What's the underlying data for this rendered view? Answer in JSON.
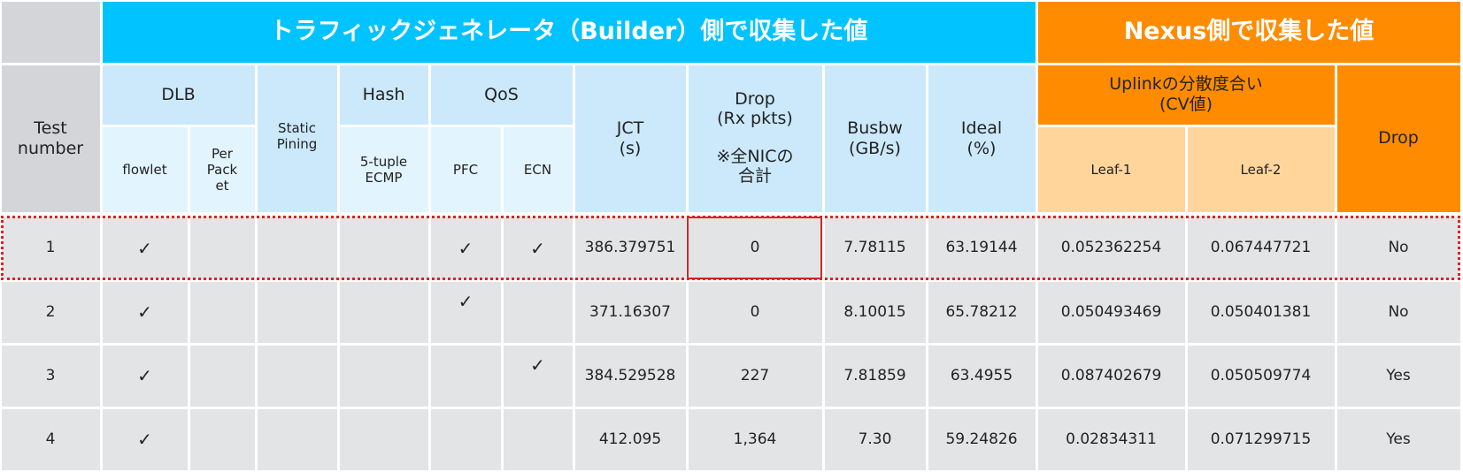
{
  "header": {
    "group_left": "トラフィックジェネレータ（Builder）側で収集した値",
    "group_right": "Nexus側で収集した値"
  },
  "columns": {
    "test_number": "Test\nnumber",
    "dlb": "DLB",
    "flowlet": "flowlet",
    "per_packet": "Per\nPack\net",
    "static_pining": "Static\nPining",
    "hash": "Hash",
    "five_tuple": "5-tuple\nECMP",
    "qos": "QoS",
    "pfc": "PFC",
    "ecn": "ECN",
    "jct": "JCT\n(s)",
    "drop_builder": "Drop\n(Rx pkts)\n\n※全NICの\n合計",
    "busbw": "Busbw\n(GB/s)",
    "ideal": "Ideal\n(%)",
    "uplink": "Uplinkの分散度合い\n(CV値)",
    "leaf1": "Leaf-1",
    "leaf2": "Leaf-2",
    "drop_nexus": "Drop"
  },
  "table": {
    "rows": [
      [
        "1",
        "✓",
        null,
        null,
        null,
        "✓",
        "✓",
        "386.379751",
        "0",
        "7.78115",
        "63.19144",
        "0.052362254",
        "0.067447721",
        "No"
      ],
      [
        "2",
        "✓",
        null,
        null,
        null,
        "✓",
        null,
        "371.16307",
        "0",
        "8.10015",
        "65.78212",
        "0.050493469",
        "0.050401381",
        "No"
      ],
      [
        "3",
        "✓",
        null,
        null,
        null,
        null,
        "✓",
        "384.529528",
        "227",
        "7.81859",
        "63.4955",
        "0.087402679",
        "0.050509774",
        "Yes"
      ],
      [
        "4",
        "✓",
        null,
        null,
        null,
        null,
        null,
        "412.095",
        "1,364",
        "7.30",
        "59.24826",
        "0.02834311",
        "0.071299715",
        "Yes"
      ]
    ]
  }
}
